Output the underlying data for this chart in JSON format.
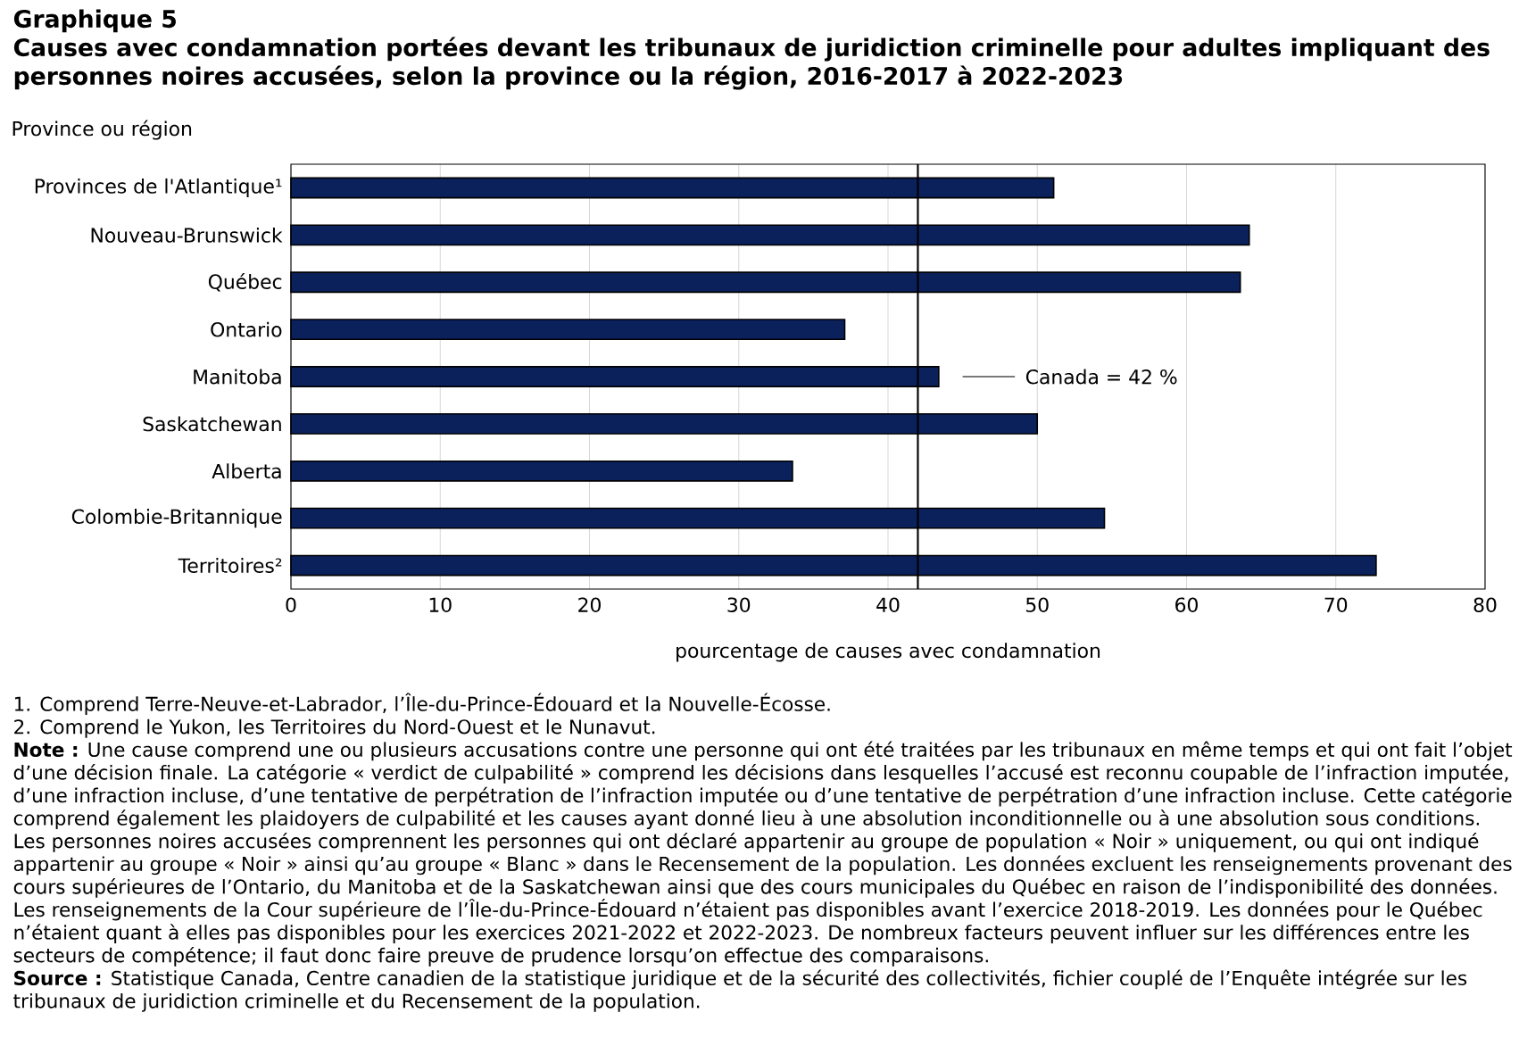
{
  "chart_data": {
    "type": "bar",
    "orientation": "horizontal",
    "title": "Graphique 5",
    "subtitle": "Causes avec condamnation portées devant les tribunaux de juridiction criminelle pour adultes impliquant des personnes noires accusées, selon la province ou la région, 2016-2017 à 2022-2023",
    "ylabel": "Province ou région",
    "xlabel": "pourcentage de causes avec condamnation",
    "categories": [
      "Provinces de l'Atlantique¹",
      "Nouveau-Brunswick",
      "Québec",
      "Ontario",
      "Manitoba",
      "Saskatchewan",
      "Alberta",
      "Colombie-Britannique",
      "Territoires²"
    ],
    "values": [
      51.1,
      64.2,
      63.6,
      37.1,
      43.4,
      50.0,
      33.6,
      54.5,
      72.7
    ],
    "color": "#0a215c",
    "xlim": [
      0,
      80
    ],
    "xticks": [
      0,
      10,
      20,
      30,
      40,
      50,
      60,
      70,
      80
    ],
    "grid": "x",
    "ref_lines": [
      {
        "axis": "x",
        "value": 42,
        "label": "Canada = 42 %",
        "color": "#000000"
      }
    ],
    "annotations": [
      "1. Comprend Terre-Neuve-et-Labrador, l’Île-du-Prince-Édouard et la Nouvelle-Écosse.",
      "2. Comprend le Yukon, les Territoires du Nord-Ouest et le Nunavut.",
      "**Note :** Une cause comprend une ou plusieurs accusations contre une personne qui ont été traitées par les tribunaux en même temps et qui ont fait l’objet d’une décision finale. La catégorie « verdict de culpabilité » comprend les décisions dans lesquelles l’accusé est reconnu coupable de l’infraction imputée, d’une infraction incluse, d’une tentative de perpétration de l’infraction imputée ou d’une tentative de perpétration d’une infraction incluse. Cette catégorie comprend également les plaidoyers de culpabilité et les causes ayant donné lieu à une absolution inconditionnelle ou à une absolution sous conditions. Les personnes noires accusées comprennent les personnes qui ont déclaré appartenir au groupe de population « Noir » uniquement, ou qui ont indiqué appartenir au groupe « Noir » ainsi qu’au groupe « Blanc » dans le Recensement de la population. Les données excluent les renseignements provenant des cours supérieures de l’Ontario, du Manitoba et de la Saskatchewan ainsi que des cours municipales du Québec en raison de l’indisponibilité des données. Les renseignements de la Cour supérieure de l’Île-du-Prince-Édouard n’étaient pas disponibles avant l’exercice 2018-2019. Les données pour le Québec n’étaient quant à elles pas disponibles pour les exercices 2021-2022 et 2022-2023. De nombreux facteurs peuvent influer sur les différences entre les secteurs de compétence; il faut donc faire preuve de prudence lorsqu’on effectue des comparaisons.",
      "**Source :** Statistique Canada, Centre canadien de la statistique juridique et de la sécurité des collectivités, fichier couplé de l’Enquête intégrée sur les tribunaux de juridiction criminelle et du Recensement de la population."
    ]
  }
}
